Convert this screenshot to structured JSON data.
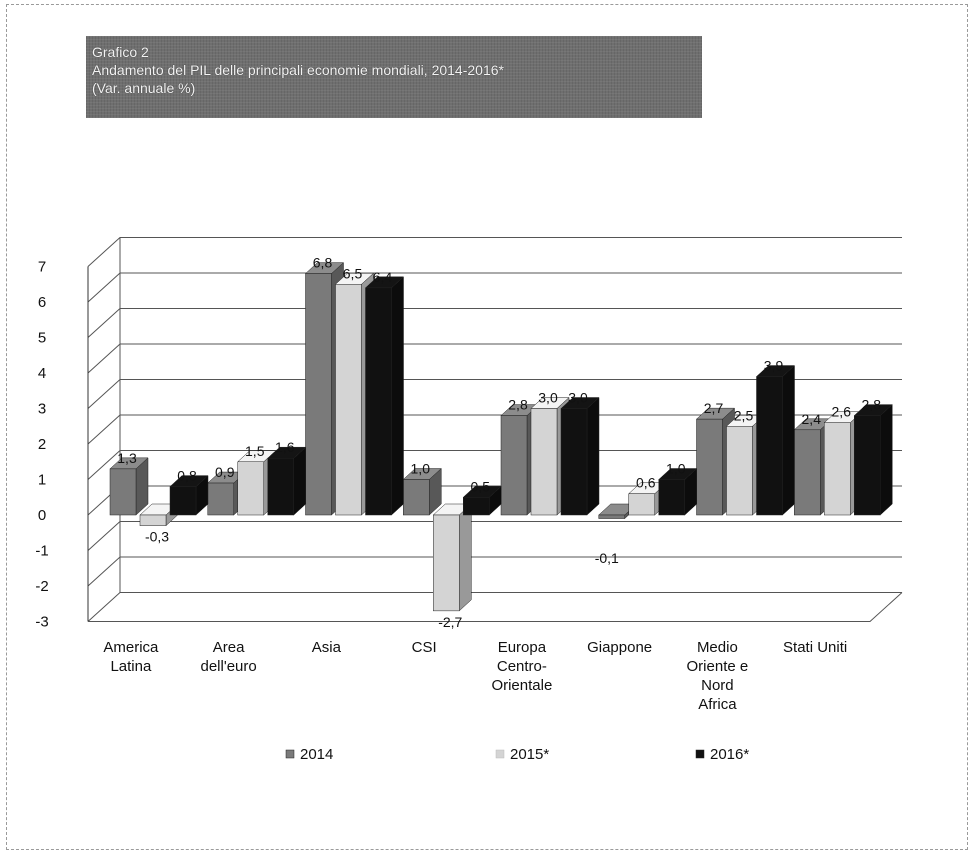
{
  "title_lines": [
    "Grafico 2",
    "Andamento del PIL delle principali economie mondiali, 2014-2016*",
    "(Var. annuale %)"
  ],
  "chart_data": {
    "type": "bar",
    "categories": [
      [
        "America",
        "Latina"
      ],
      [
        "Area",
        "dell'euro"
      ],
      [
        "Asia"
      ],
      [
        "CSI"
      ],
      [
        "Europa",
        "Centro-",
        "Orientale"
      ],
      [
        "Giappone"
      ],
      [
        "Medio",
        "Oriente e",
        "Nord",
        "Africa"
      ],
      [
        "Stati Uniti"
      ]
    ],
    "series": [
      {
        "name": "2014",
        "values": [
          1.3,
          0.9,
          6.8,
          1.0,
          2.8,
          -0.1,
          2.7,
          2.4
        ],
        "labels": [
          "1,3",
          "0,9",
          "6,8",
          "1,0",
          "2,8",
          "",
          "2,7",
          "2,4"
        ],
        "color": "#7a7a7a"
      },
      {
        "name": "2015*",
        "values": [
          -0.3,
          1.5,
          6.5,
          -2.7,
          3.0,
          0.6,
          2.5,
          2.6
        ],
        "labels": [
          "-0,3",
          "1,5",
          "6,5",
          "-2,7",
          "3,0",
          "0,6",
          "2,5",
          "2,6"
        ],
        "color": "#d4d4d4"
      },
      {
        "name": "2016*",
        "values": [
          0.8,
          1.6,
          6.4,
          0.5,
          3.0,
          1.0,
          3.9,
          2.8
        ],
        "labels": [
          "0,8",
          "1,6",
          "6,4",
          "0,5",
          "3,0",
          "1,0",
          "3,9",
          "2,8"
        ],
        "color": "#111111"
      }
    ],
    "extra_labels": [
      "-0,1"
    ],
    "ylim": [
      -3,
      7
    ],
    "yticks": [
      "-3",
      "-2",
      "-1",
      "0",
      "1",
      "2",
      "3",
      "4",
      "5",
      "6",
      "7"
    ],
    "grid": true,
    "legend_position": "bottom"
  }
}
